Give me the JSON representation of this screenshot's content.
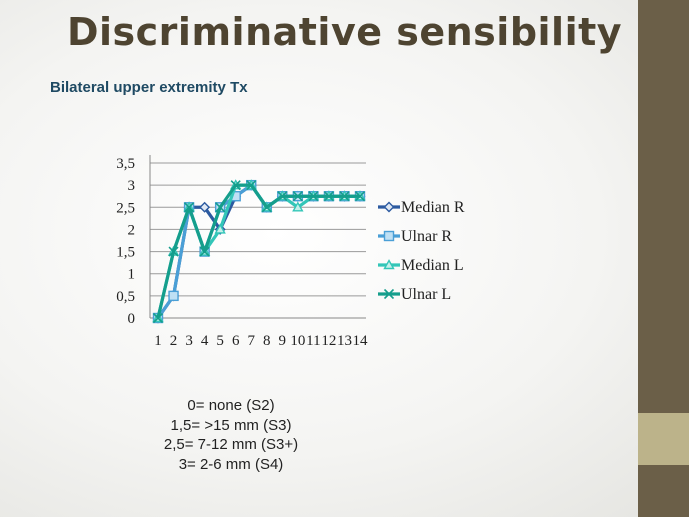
{
  "slide": {
    "title": "Discriminative sensibility",
    "subtitle": "Bilateral upper extremity Tx",
    "notes": [
      "0= none (S2)",
      "1,5= >15 mm (S3)",
      "2,5= 7-12 mm (S3+)",
      "3= 2-6 mm (S4)"
    ]
  },
  "colors": {
    "sidebar": "#6b5f48",
    "sidebar_accent": "#bcb38a",
    "title": "#4e4431",
    "subtitle": "#1f4a63"
  },
  "chart_data": {
    "type": "line",
    "x": [
      1,
      2,
      3,
      4,
      5,
      6,
      7,
      8,
      9,
      10,
      11,
      12,
      13,
      14
    ],
    "y_ticks": [
      "0",
      "0,5",
      "1",
      "1,5",
      "2",
      "2,5",
      "3",
      "3,5"
    ],
    "ylim": [
      0,
      3.5
    ],
    "grid": true,
    "legend_position": "right",
    "series": [
      {
        "name": "Median R",
        "color": "#2c5aa0",
        "marker": "diamond",
        "values": [
          0,
          0.5,
          2.5,
          2.5,
          2,
          2.75,
          3,
          2.5,
          2.75,
          2.75,
          2.75,
          2.75,
          2.75,
          2.75
        ]
      },
      {
        "name": "Ulnar R",
        "color": "#4a9fd6",
        "marker": "square",
        "values": [
          0,
          0.5,
          2.5,
          1.5,
          2.5,
          2.75,
          3,
          2.5,
          2.75,
          2.75,
          2.75,
          2.75,
          2.75,
          2.75
        ]
      },
      {
        "name": "Median L",
        "color": "#33c6b8",
        "marker": "triangle",
        "values": [
          0,
          1.5,
          2.5,
          1.5,
          2,
          3,
          3,
          2.5,
          2.75,
          2.5,
          2.75,
          2.75,
          2.75,
          2.75
        ]
      },
      {
        "name": "Ulnar L",
        "color": "#159e8c",
        "marker": "x",
        "values": [
          0,
          1.5,
          2.5,
          1.5,
          2.5,
          3,
          3,
          2.5,
          2.75,
          2.75,
          2.75,
          2.75,
          2.75,
          2.75
        ]
      }
    ]
  }
}
